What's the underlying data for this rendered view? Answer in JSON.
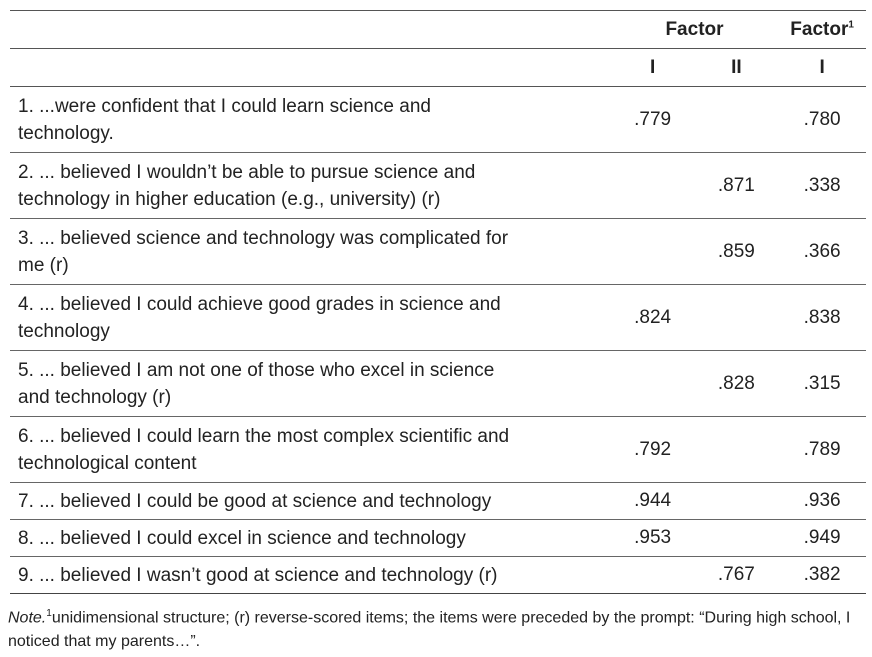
{
  "header": {
    "factor": "Factor",
    "factor_uni": "Factor",
    "factor_uni_sup": "1",
    "sub": [
      "I",
      "II",
      "I"
    ]
  },
  "rows": [
    {
      "item": "1. ...were confident that I could learn science and technology.",
      "f1": ".779",
      "f2": "",
      "u1": ".780"
    },
    {
      "item": "2. ... believed I wouldn’t be able to pursue science and technology in higher education (e.g., university) (r)",
      "f1": "",
      "f2": ".871",
      "u1": ".338"
    },
    {
      "item": "3. ... believed science and technology was complicated for me (r)",
      "f1": "",
      "f2": ".859",
      "u1": ".366"
    },
    {
      "item": "4. ... believed I could achieve good grades in science and technology",
      "f1": ".824",
      "f2": "",
      "u1": ".838"
    },
    {
      "item": "5. ... believed I am not one of those who excel in science and technology (r)",
      "f1": "",
      "f2": ".828",
      "u1": ".315"
    },
    {
      "item": "6. ... believed I could learn the most complex scientific and technological content",
      "f1": ".792",
      "f2": "",
      "u1": ".789"
    },
    {
      "item": "7. ... believed I could be good at science and technology",
      "f1": ".944",
      "f2": "",
      "u1": ".936"
    },
    {
      "item": "8. ... believed I could excel in science and technology",
      "f1": ".953",
      "f2": "",
      "u1": ".949"
    },
    {
      "item": "9. ... believed I wasn’t good at science and technology (r)",
      "f1": "",
      "f2": ".767",
      "u1": ".382"
    }
  ],
  "note": {
    "label": "Note.",
    "sup": "1",
    "text": "unidimensional structure; (r) reverse-scored items; the items were preceded by the prompt: “During high school, I noticed that my parents…”."
  }
}
